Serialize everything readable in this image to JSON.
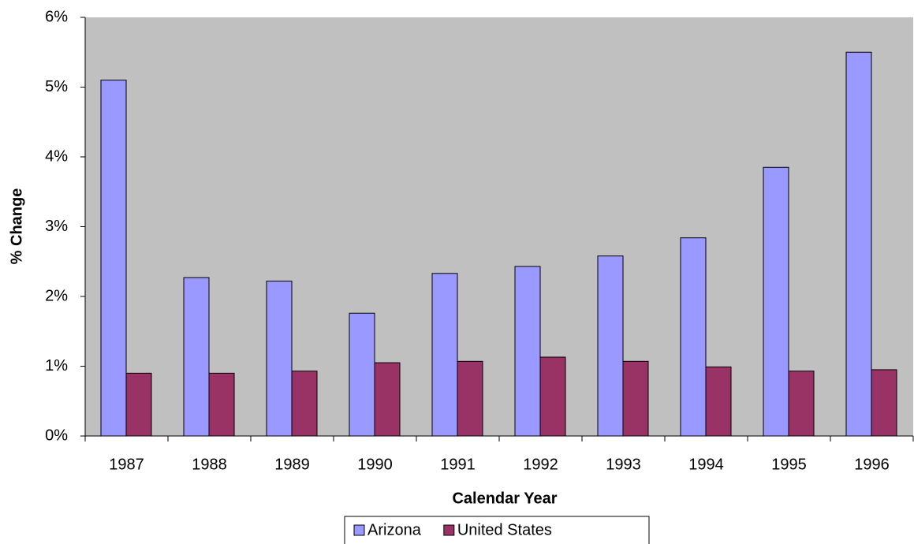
{
  "chart_data": {
    "type": "bar",
    "x_label": "Calendar Year",
    "y_label": "% Change",
    "categories": [
      "1987",
      "1988",
      "1989",
      "1990",
      "1991",
      "1992",
      "1993",
      "1994",
      "1995",
      "1996"
    ],
    "series": [
      {
        "name": "Arizona",
        "color": "#9999ff",
        "values": [
          5.1,
          2.27,
          2.22,
          1.76,
          2.33,
          2.43,
          2.58,
          2.84,
          3.85,
          5.5
        ]
      },
      {
        "name": "United States",
        "color": "#993366",
        "values": [
          0.9,
          0.9,
          0.93,
          1.05,
          1.07,
          1.13,
          1.07,
          0.99,
          0.93,
          0.95
        ]
      }
    ],
    "ylim": [
      0,
      6
    ],
    "yticks": [
      {
        "value": 0,
        "label": "0%"
      },
      {
        "value": 1,
        "label": "1%"
      },
      {
        "value": 2,
        "label": "2%"
      },
      {
        "value": 3,
        "label": "3%"
      },
      {
        "value": 4,
        "label": "4%"
      },
      {
        "value": 5,
        "label": "5%"
      },
      {
        "value": 6,
        "label": "6%"
      }
    ],
    "legend": "bottom",
    "plot_background": "#c0c0c0"
  }
}
